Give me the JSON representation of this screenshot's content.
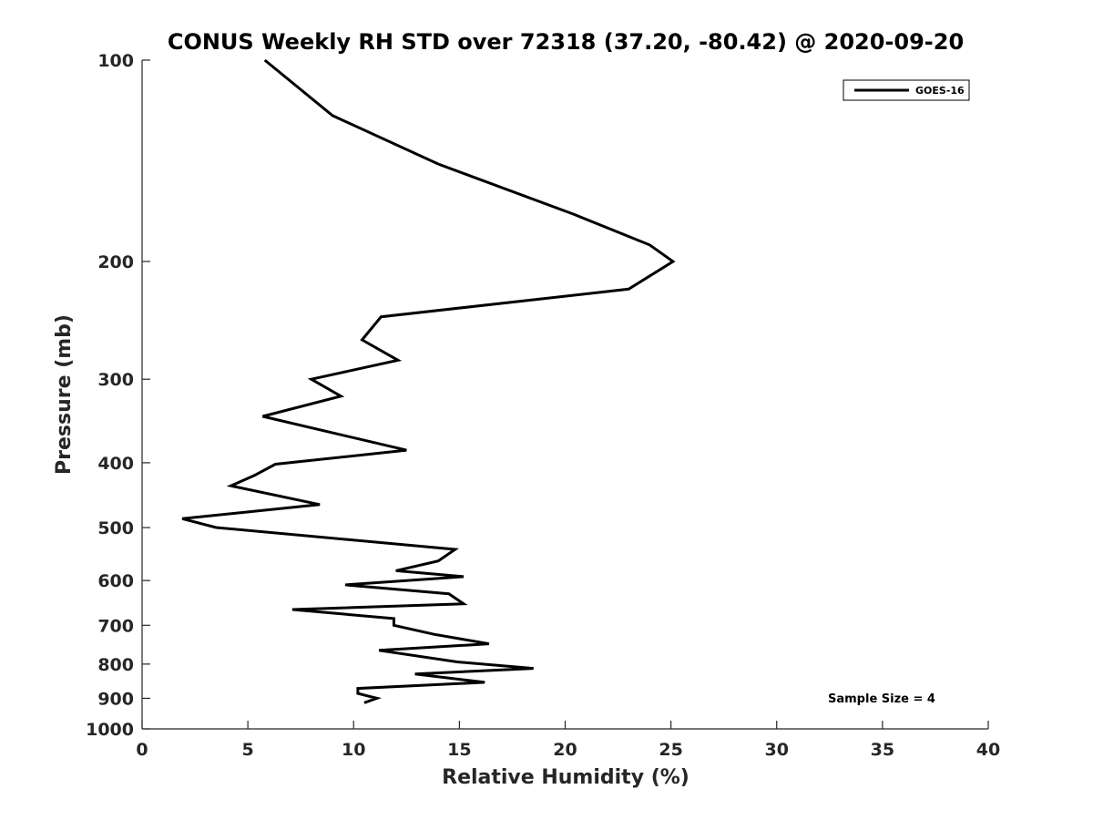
{
  "chart_data": {
    "type": "line",
    "title": "CONUS Weekly RH STD over 72318 (37.20, -80.42) @ 2020-09-20",
    "xlabel": "Relative Humidity (%)",
    "ylabel": "Pressure (mb)",
    "xlim": [
      0,
      40
    ],
    "ylim": [
      100,
      1000
    ],
    "y_scale": "log",
    "y_direction": "reversed",
    "grid": false,
    "legend_position": "top-right",
    "x_ticks": [
      "0",
      "5",
      "10",
      "15",
      "20",
      "25",
      "30",
      "35",
      "40"
    ],
    "y_ticks": [
      "100",
      "200",
      "300",
      "400",
      "500",
      "600",
      "700",
      "800",
      "900",
      "1000"
    ],
    "series": [
      {
        "name": "GOES-16",
        "color": "#000000",
        "points": [
          [
            5.8,
            100
          ],
          [
            9.0,
            121
          ],
          [
            14.0,
            143
          ],
          [
            20.4,
            170
          ],
          [
            24.0,
            189
          ],
          [
            25.1,
            200
          ],
          [
            23.0,
            220
          ],
          [
            11.3,
            242
          ],
          [
            10.4,
            262
          ],
          [
            12.1,
            281
          ],
          [
            8.0,
            300
          ],
          [
            9.4,
            318
          ],
          [
            5.7,
            341
          ],
          [
            12.5,
            383
          ],
          [
            6.3,
            402
          ],
          [
            5.3,
            418
          ],
          [
            4.2,
            433
          ],
          [
            8.4,
            462
          ],
          [
            1.9,
            485
          ],
          [
            3.5,
            500
          ],
          [
            14.8,
            539
          ],
          [
            14.0,
            561
          ],
          [
            12.0,
            580
          ],
          [
            15.2,
            592
          ],
          [
            9.6,
            609
          ],
          [
            14.5,
            628
          ],
          [
            15.2,
            650
          ],
          [
            7.1,
            663
          ],
          [
            11.9,
            684
          ],
          [
            11.9,
            700
          ],
          [
            13.8,
            722
          ],
          [
            16.4,
            746
          ],
          [
            11.2,
            763
          ],
          [
            14.9,
            794
          ],
          [
            18.5,
            812
          ],
          [
            12.9,
            828
          ],
          [
            16.2,
            852
          ],
          [
            10.2,
            870
          ],
          [
            10.2,
            885
          ],
          [
            11.1,
            900
          ],
          [
            10.5,
            914
          ]
        ]
      }
    ],
    "annotation": "Sample Size = 4"
  }
}
